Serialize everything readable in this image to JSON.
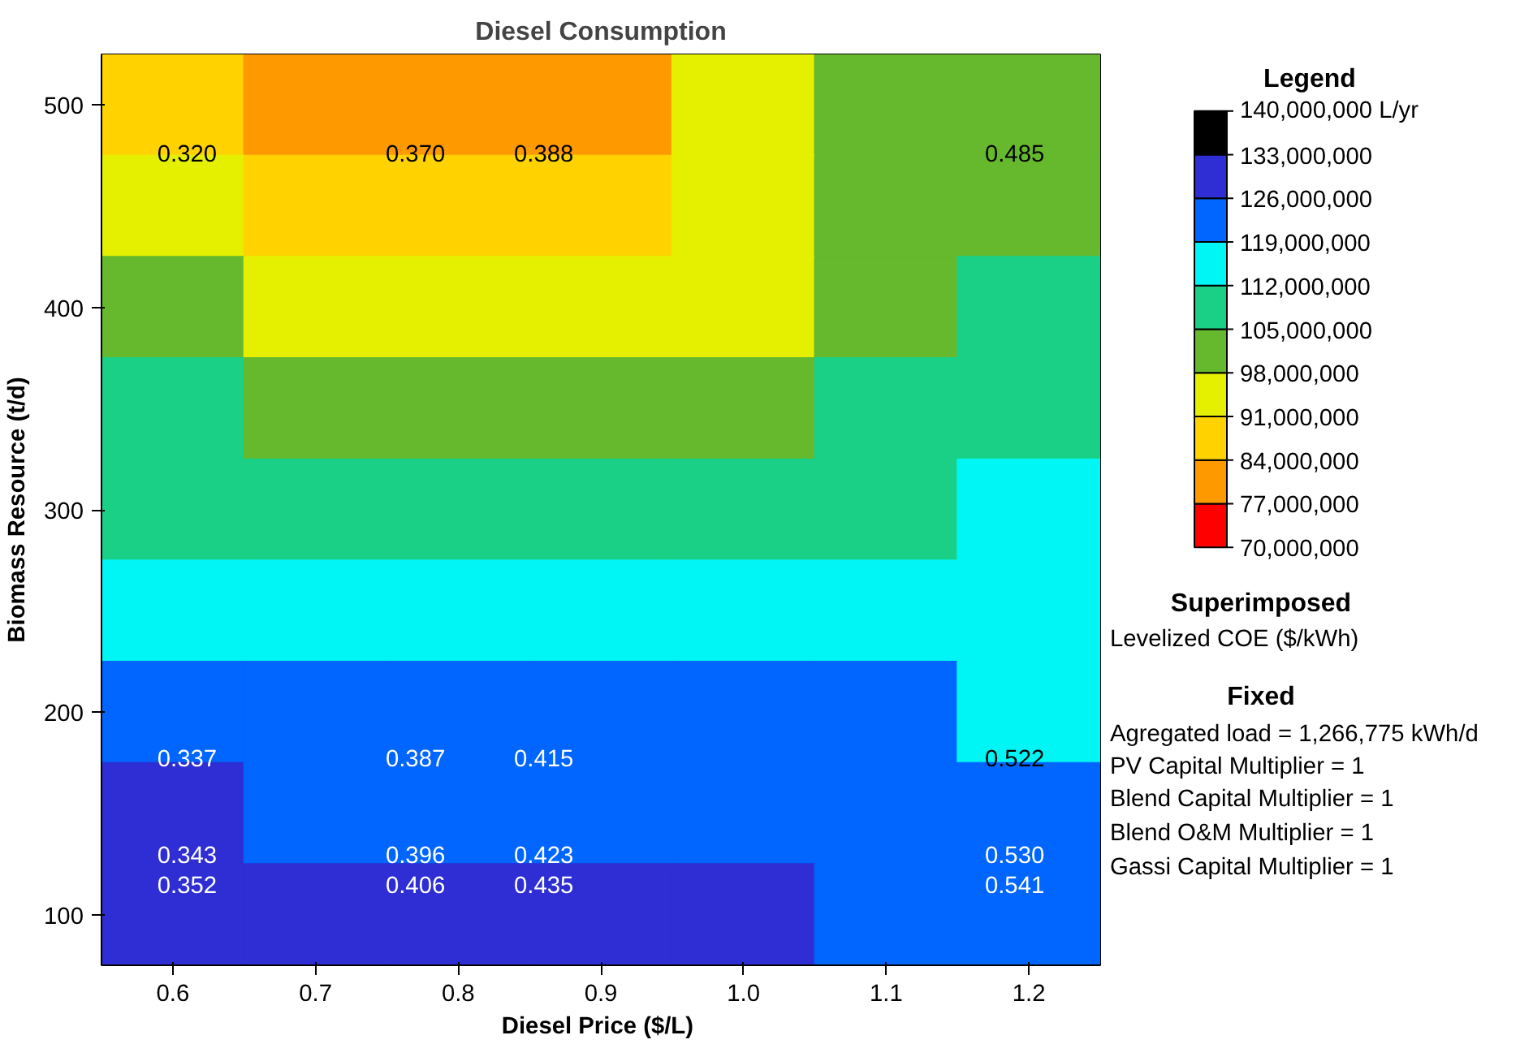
{
  "chart_data": {
    "type": "heatmap",
    "title": "Diesel Consumption",
    "xlabel": "Diesel Price  ($/L)",
    "ylabel": "Biomass Resource (t/d)",
    "legend_title": "Legend",
    "categories": [
      "0.6",
      "0.7",
      "0.8",
      "0.9",
      "1.0",
      "1.1",
      "1.2"
    ],
    "y_categories": [
      "500",
      null,
      "400",
      null,
      "300",
      null,
      "200",
      null,
      "100"
    ],
    "cells": [
      [
        87500000,
        80500000,
        80500000,
        80500000,
        94500000,
        101500000,
        101500000
      ],
      [
        94500000,
        87500000,
        87500000,
        87500000,
        94500000,
        101500000,
        101500000
      ],
      [
        101500000,
        94500000,
        94500000,
        94500000,
        94500000,
        101500000,
        108500000
      ],
      [
        108500000,
        101500000,
        101500000,
        101500000,
        101500000,
        108500000,
        108500000
      ],
      [
        108500000,
        108500000,
        108500000,
        108500000,
        108500000,
        108500000,
        115500000
      ],
      [
        115500000,
        115500000,
        115500000,
        115500000,
        115500000,
        115500000,
        115500000
      ],
      [
        122500000,
        122500000,
        122500000,
        122500000,
        122500000,
        122500000,
        115500000
      ],
      [
        129500000,
        122500000,
        122500000,
        122500000,
        122500000,
        122500000,
        122500000
      ],
      [
        129500000,
        129500000,
        129500000,
        129500000,
        129500000,
        122500000,
        122500000
      ]
    ],
    "clim": [
      70000000,
      140000000
    ],
    "cticks": [
      {
        "value": 70000000,
        "label": "70,000,000"
      },
      {
        "value": 77000000,
        "label": "77,000,000"
      },
      {
        "value": 84000000,
        "label": "84,000,000"
      },
      {
        "value": 91000000,
        "label": "91,000,000"
      },
      {
        "value": 98000000,
        "label": "98,000,000"
      },
      {
        "value": 105000000,
        "label": "105,000,000"
      },
      {
        "value": 112000000,
        "label": "112,000,000"
      },
      {
        "value": 119000000,
        "label": "119,000,000"
      },
      {
        "value": 126000000,
        "label": "126,000,000"
      },
      {
        "value": 133000000,
        "label": "133,000,000"
      },
      {
        "value": 140000000,
        "label": "140,000,000 L/yr"
      }
    ],
    "annotations": [
      "0.320",
      "0.370",
      "0.388",
      "0.485",
      "0.337",
      "0.387",
      "0.415",
      "0.522",
      "0.343",
      "0.396",
      "0.423",
      "0.530",
      "0.352",
      "0.406",
      "0.435",
      "0.541",
      "Superimposed",
      "Levelized COE ($/kWh)",
      "Fixed",
      "Agregated load = 1,266,775 kWh/d",
      "PV Capital Multiplier = 1",
      "Blend Capital Multiplier = 1",
      "Blend O&M Multiplier = 1",
      "Gassi Capital Multiplier = 1"
    ]
  }
}
